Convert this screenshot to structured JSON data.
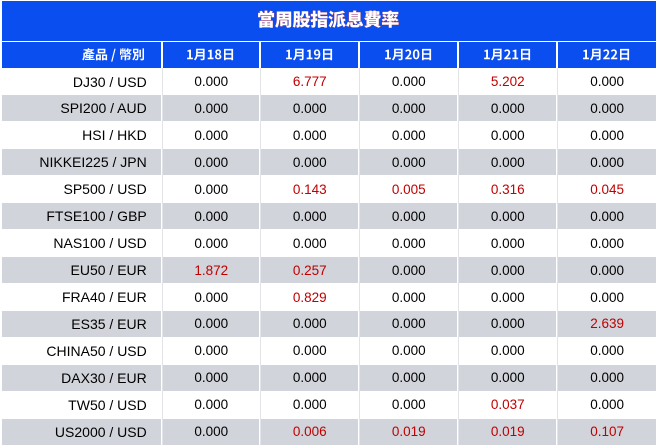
{
  "title": {
    "text": "當周股指派息費率",
    "bar_color": "#0B4EF0",
    "text_color": "#FFFFFF",
    "outline_color": "#D42020"
  },
  "header": {
    "product_label": "產品 / 幣別",
    "dates": [
      "1月18日",
      "1月19日",
      "1月20日",
      "1月21日",
      "1月22日"
    ],
    "bg_color": "#0B4EF0",
    "text_color": "#FFFFFF"
  },
  "table": {
    "alt_row_bg": "#D1D4DA",
    "zero_value_color": "#000000",
    "nonzero_value_color": "#C00000",
    "rows": [
      {
        "product": "DJ30 / USD",
        "values": [
          "0.000",
          "6.777",
          "0.000",
          "5.202",
          "0.000"
        ]
      },
      {
        "product": "SPI200 / AUD",
        "values": [
          "0.000",
          "0.000",
          "0.000",
          "0.000",
          "0.000"
        ]
      },
      {
        "product": "HSI / HKD",
        "values": [
          "0.000",
          "0.000",
          "0.000",
          "0.000",
          "0.000"
        ]
      },
      {
        "product": "NIKKEI225 / JPN",
        "values": [
          "0.000",
          "0.000",
          "0.000",
          "0.000",
          "0.000"
        ]
      },
      {
        "product": "SP500 / USD",
        "values": [
          "0.000",
          "0.143",
          "0.005",
          "0.316",
          "0.045"
        ]
      },
      {
        "product": "FTSE100 / GBP",
        "values": [
          "0.000",
          "0.000",
          "0.000",
          "0.000",
          "0.000"
        ]
      },
      {
        "product": "NAS100 / USD",
        "values": [
          "0.000",
          "0.000",
          "0.000",
          "0.000",
          "0.000"
        ]
      },
      {
        "product": "EU50 / EUR",
        "values": [
          "1.872",
          "0.257",
          "0.000",
          "0.000",
          "0.000"
        ]
      },
      {
        "product": "FRA40 / EUR",
        "values": [
          "0.000",
          "0.829",
          "0.000",
          "0.000",
          "0.000"
        ]
      },
      {
        "product": "ES35 / EUR",
        "values": [
          "0.000",
          "0.000",
          "0.000",
          "0.000",
          "2.639"
        ]
      },
      {
        "product": "CHINA50 / USD",
        "values": [
          "0.000",
          "0.000",
          "0.000",
          "0.000",
          "0.000"
        ]
      },
      {
        "product": "DAX30 / EUR",
        "values": [
          "0.000",
          "0.000",
          "0.000",
          "0.000",
          "0.000"
        ]
      },
      {
        "product": "TW50 / USD",
        "values": [
          "0.000",
          "0.000",
          "0.000",
          "0.037",
          "0.000"
        ]
      },
      {
        "product": "US2000 / USD",
        "values": [
          "0.000",
          "0.006",
          "0.019",
          "0.019",
          "0.107"
        ]
      }
    ]
  },
  "chart_data": {
    "type": "table",
    "title": "當周股指派息費率",
    "columns": [
      "產品 / 幣別",
      "1月18日",
      "1月19日",
      "1月20日",
      "1月21日",
      "1月22日"
    ],
    "rows": [
      [
        "DJ30 / USD",
        "0.000",
        "6.777",
        "0.000",
        "5.202",
        "0.000"
      ],
      [
        "SPI200 / AUD",
        "0.000",
        "0.000",
        "0.000",
        "0.000",
        "0.000"
      ],
      [
        "HSI / HKD",
        "0.000",
        "0.000",
        "0.000",
        "0.000",
        "0.000"
      ],
      [
        "NIKKEI225 / JPN",
        "0.000",
        "0.000",
        "0.000",
        "0.000",
        "0.000"
      ],
      [
        "SP500 / USD",
        "0.000",
        "0.143",
        "0.005",
        "0.316",
        "0.045"
      ],
      [
        "FTSE100 / GBP",
        "0.000",
        "0.000",
        "0.000",
        "0.000",
        "0.000"
      ],
      [
        "NAS100 / USD",
        "0.000",
        "0.000",
        "0.000",
        "0.000",
        "0.000"
      ],
      [
        "EU50 / EUR",
        "1.872",
        "0.257",
        "0.000",
        "0.000",
        "0.000"
      ],
      [
        "FRA40 / EUR",
        "0.000",
        "0.829",
        "0.000",
        "0.000",
        "0.000"
      ],
      [
        "ES35 / EUR",
        "0.000",
        "0.000",
        "0.000",
        "0.000",
        "2.639"
      ],
      [
        "CHINA50 / USD",
        "0.000",
        "0.000",
        "0.000",
        "0.000",
        "0.000"
      ],
      [
        "DAX30 / EUR",
        "0.000",
        "0.000",
        "0.000",
        "0.000",
        "0.000"
      ],
      [
        "TW50 / USD",
        "0.000",
        "0.000",
        "0.000",
        "0.037",
        "0.000"
      ],
      [
        "US2000 / USD",
        "0.000",
        "0.006",
        "0.019",
        "0.019",
        "0.107"
      ]
    ]
  }
}
